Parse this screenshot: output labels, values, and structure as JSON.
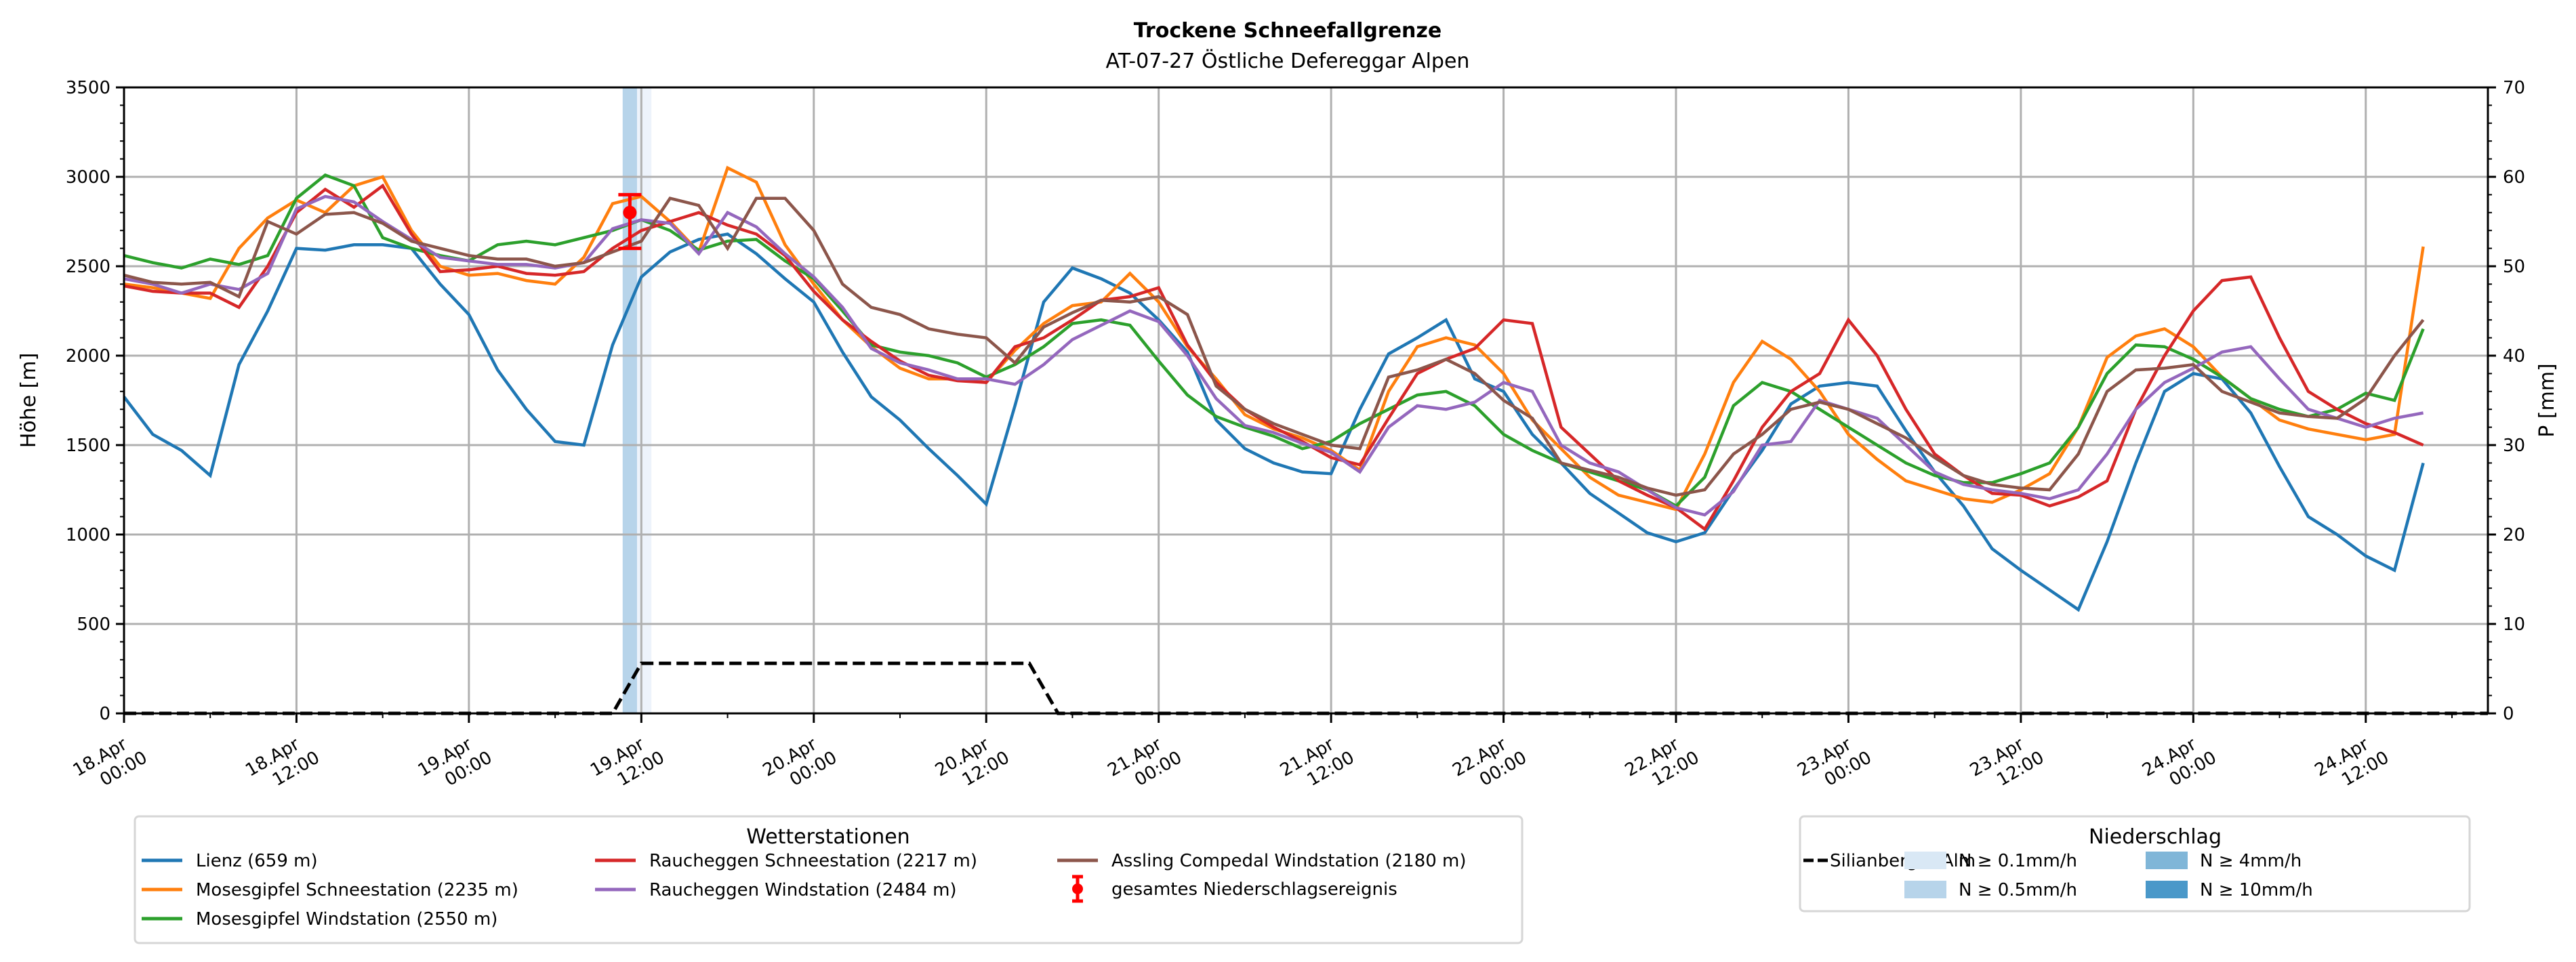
{
  "chart_data": {
    "type": "line",
    "title": "Trockene Schneefallgrenze",
    "subtitle": "AT-07-27 Östliche Defereggar Alpen",
    "ylabel": "Höhe [m]",
    "y2label": "P [mm]",
    "ylim": [
      0,
      3500
    ],
    "y2lim": [
      0,
      70
    ],
    "yticks": [
      0,
      500,
      1000,
      1500,
      2000,
      2500,
      3000,
      3500
    ],
    "y2ticks": [
      0,
      10,
      20,
      30,
      40,
      50,
      60,
      70
    ],
    "grid": true,
    "x_start_hours": 0,
    "x_end_hours": 164.5,
    "x_step_hours": 2,
    "xticks": [
      {
        "hours": 0,
        "line1": "18.Apr",
        "line2": "00:00"
      },
      {
        "hours": 12,
        "line1": "18.Apr",
        "line2": "12:00"
      },
      {
        "hours": 24,
        "line1": "19.Apr",
        "line2": "00:00"
      },
      {
        "hours": 36,
        "line1": "19.Apr",
        "line2": "12:00"
      },
      {
        "hours": 48,
        "line1": "20.Apr",
        "line2": "00:00"
      },
      {
        "hours": 60,
        "line1": "20.Apr",
        "line2": "12:00"
      },
      {
        "hours": 72,
        "line1": "21.Apr",
        "line2": "00:00"
      },
      {
        "hours": 84,
        "line1": "21.Apr",
        "line2": "12:00"
      },
      {
        "hours": 96,
        "line1": "22.Apr",
        "line2": "00:00"
      },
      {
        "hours": 108,
        "line1": "22.Apr",
        "line2": "12:00"
      },
      {
        "hours": 120,
        "line1": "23.Apr",
        "line2": "00:00"
      },
      {
        "hours": 132,
        "line1": "23.Apr",
        "line2": "12:00"
      },
      {
        "hours": 144,
        "line1": "24.Apr",
        "line2": "00:00"
      },
      {
        "hours": 156,
        "line1": "24.Apr",
        "line2": "12:00"
      }
    ],
    "series": [
      {
        "name": "Lienz (659 m)",
        "color": "#1f77b4",
        "values": [
          1770,
          1560,
          1470,
          1330,
          1950,
          2250,
          2600,
          2590,
          2620,
          2620,
          2600,
          2400,
          2230,
          1920,
          1700,
          1520,
          1500,
          2060,
          2440,
          2580,
          2650,
          2680,
          2570,
          2430,
          2300,
          2020,
          1770,
          1640,
          1480,
          1330,
          1170,
          1720,
          2300,
          2490,
          2430,
          2350,
          2200,
          2020,
          1640,
          1480,
          1400,
          1350,
          1340,
          1700,
          2010,
          2100,
          2200,
          1870,
          1800,
          1560,
          1400,
          1230,
          1120,
          1010,
          960,
          1010,
          1250,
          1470,
          1730,
          1830,
          1850,
          1830,
          1580,
          1350,
          1160,
          920,
          800,
          690,
          580,
          960,
          1400,
          1800,
          1900,
          1870,
          1680,
          1380,
          1100,
          1000,
          880,
          800,
          1400
        ]
      },
      {
        "name": "Mosesgipfel Schneestation (2235 m)",
        "color": "#ff7f0e",
        "values": [
          2400,
          2380,
          2350,
          2320,
          2600,
          2770,
          2870,
          2800,
          2950,
          3000,
          2700,
          2500,
          2450,
          2460,
          2420,
          2400,
          2550,
          2850,
          2890,
          2750,
          2580,
          3050,
          2970,
          2620,
          2400,
          2200,
          2050,
          1930,
          1870,
          1870,
          1850,
          2030,
          2180,
          2280,
          2300,
          2460,
          2300,
          2050,
          1870,
          1670,
          1590,
          1540,
          1470,
          1360,
          1800,
          2050,
          2100,
          2060,
          1900,
          1640,
          1480,
          1320,
          1220,
          1180,
          1140,
          1450,
          1850,
          2080,
          1980,
          1800,
          1560,
          1420,
          1300,
          1250,
          1200,
          1180,
          1250,
          1340,
          1600,
          1990,
          2110,
          2150,
          2050,
          1880,
          1760,
          1640,
          1590,
          1560,
          1530,
          1560,
          2610
        ]
      },
      {
        "name": "Mosesgipfel Windstation (2550 m)",
        "color": "#2ca02c",
        "values": [
          2560,
          2520,
          2490,
          2540,
          2510,
          2560,
          2880,
          3010,
          2950,
          2660,
          2600,
          2560,
          2530,
          2620,
          2640,
          2620,
          2660,
          2700,
          2760,
          2700,
          2590,
          2640,
          2650,
          2530,
          2430,
          2250,
          2060,
          2020,
          2000,
          1960,
          1880,
          1950,
          2050,
          2180,
          2200,
          2170,
          1970,
          1780,
          1660,
          1600,
          1550,
          1480,
          1520,
          1620,
          1700,
          1780,
          1800,
          1720,
          1560,
          1470,
          1400,
          1350,
          1300,
          1250,
          1160,
          1320,
          1720,
          1850,
          1800,
          1700,
          1600,
          1500,
          1400,
          1330,
          1290,
          1290,
          1340,
          1400,
          1600,
          1900,
          2060,
          2050,
          1980,
          1880,
          1760,
          1700,
          1660,
          1700,
          1790,
          1750,
          2150
        ]
      },
      {
        "name": "Raucheggen Schneestation (2217 m)",
        "color": "#d62728",
        "values": [
          2390,
          2360,
          2350,
          2350,
          2270,
          2500,
          2800,
          2930,
          2830,
          2950,
          2680,
          2470,
          2480,
          2500,
          2460,
          2450,
          2470,
          2600,
          2700,
          2750,
          2800,
          2730,
          2680,
          2560,
          2360,
          2200,
          2080,
          1970,
          1890,
          1860,
          1850,
          2050,
          2100,
          2200,
          2310,
          2330,
          2380,
          2060,
          1850,
          1700,
          1600,
          1520,
          1430,
          1390,
          1650,
          1900,
          1980,
          2040,
          2200,
          2180,
          1600,
          1450,
          1300,
          1220,
          1150,
          1030,
          1300,
          1600,
          1800,
          1900,
          2200,
          2000,
          1700,
          1450,
          1330,
          1230,
          1220,
          1160,
          1210,
          1300,
          1700,
          2000,
          2250,
          2420,
          2440,
          2100,
          1800,
          1700,
          1620,
          1570,
          1500
        ]
      },
      {
        "name": "Raucheggen Windstation (2484 m)",
        "color": "#9467bd",
        "values": [
          2430,
          2400,
          2350,
          2400,
          2370,
          2460,
          2820,
          2890,
          2860,
          2750,
          2650,
          2550,
          2530,
          2510,
          2510,
          2490,
          2520,
          2710,
          2760,
          2740,
          2570,
          2800,
          2720,
          2570,
          2440,
          2270,
          2040,
          1960,
          1920,
          1870,
          1870,
          1840,
          1950,
          2090,
          2170,
          2250,
          2190,
          2000,
          1760,
          1610,
          1570,
          1510,
          1460,
          1350,
          1600,
          1720,
          1700,
          1740,
          1850,
          1800,
          1500,
          1400,
          1350,
          1250,
          1150,
          1110,
          1240,
          1500,
          1520,
          1750,
          1700,
          1650,
          1500,
          1350,
          1280,
          1250,
          1230,
          1200,
          1250,
          1450,
          1700,
          1850,
          1930,
          2020,
          2050,
          1870,
          1700,
          1650,
          1600,
          1650,
          1680
        ]
      },
      {
        "name": "Assling Compedal Windstation (2180 m)",
        "color": "#8c564b",
        "values": [
          2450,
          2410,
          2400,
          2410,
          2330,
          2750,
          2680,
          2790,
          2800,
          2740,
          2640,
          2600,
          2560,
          2540,
          2540,
          2500,
          2520,
          2580,
          2640,
          2880,
          2840,
          2600,
          2880,
          2880,
          2700,
          2400,
          2270,
          2230,
          2150,
          2120,
          2100,
          1960,
          2160,
          2240,
          2310,
          2300,
          2330,
          2230,
          1830,
          1700,
          1620,
          1560,
          1500,
          1480,
          1880,
          1920,
          1980,
          1900,
          1750,
          1650,
          1400,
          1360,
          1320,
          1260,
          1220,
          1250,
          1450,
          1560,
          1700,
          1740,
          1700,
          1620,
          1540,
          1430,
          1330,
          1280,
          1260,
          1250,
          1450,
          1800,
          1920,
          1930,
          1950,
          1800,
          1740,
          1680,
          1660,
          1650,
          1760,
          2000,
          2200
        ]
      }
    ],
    "precip_series": {
      "name": "Silianberger Alm",
      "style": "dashed",
      "color": "#000000",
      "points_hours": [
        0,
        34,
        36,
        63,
        65,
        164.5
      ],
      "points_mm": [
        0,
        0,
        5.6,
        5.6,
        0,
        0
      ]
    },
    "precip_bands": [
      {
        "start_hours": 34.7,
        "end_hours": 35.7,
        "level": "N ≥ 0.5mm/h",
        "color": "#b7d4ea"
      },
      {
        "start_hours": 35.7,
        "end_hours": 36.7,
        "level": "N ≥ 0.1mm/h",
        "color": "#edf3fb"
      }
    ],
    "precip_event": {
      "label": "gesamtes Niederschlagsereignis",
      "hours": 35.2,
      "value": 2800,
      "low": 2600,
      "high": 2900,
      "color": "#ff0000"
    },
    "legend_stations": {
      "title": "Wetterstationen",
      "placement": "bottom-left"
    },
    "legend_precip": {
      "title": "Niederschlag",
      "placement": "bottom-right",
      "entries": [
        {
          "label": "Silianberger Alm",
          "kind": "dashed-line",
          "color": "#000000"
        },
        {
          "label": "N ≥ 0.1mm/h",
          "kind": "patch",
          "color": "#d9e8f5"
        },
        {
          "label": "N ≥ 0.5mm/h",
          "kind": "patch",
          "color": "#b7d4ea"
        },
        {
          "label": "N ≥ 4mm/h",
          "kind": "patch",
          "color": "#80b6d8"
        },
        {
          "label": "N ≥ 10mm/h",
          "kind": "patch",
          "color": "#4a98c9"
        }
      ]
    }
  }
}
